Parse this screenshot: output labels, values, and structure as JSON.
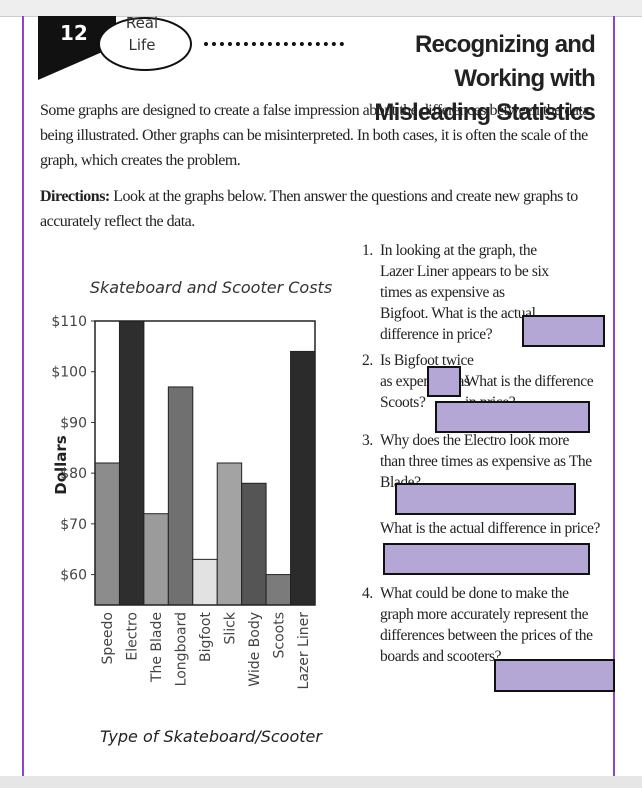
{
  "header": {
    "number": "12",
    "badge": [
      "Real",
      "Life"
    ],
    "title": "Recognizing and Working with Misleading Statistics"
  },
  "intro": "Some graphs are designed to create a false impression about the differences between the data being illustrated. Other graphs can be misinterpreted. In both cases, it is often the scale of the graph, which creates the problem.",
  "directions": {
    "label": "Directions:",
    "text": "Look at the graphs below. Then answer the questions and create new graphs to accurately reflect the data."
  },
  "chart_data": {
    "type": "bar",
    "title": "Skateboard and Scooter Costs",
    "y_label": "Dollars",
    "x_label": "Type of Skateboard/Scooter",
    "categories": [
      "Speedo",
      "Electro",
      "The Blade",
      "Longboard",
      "Bigfoot",
      "Slick",
      "Wide Body",
      "Scoots",
      "Lazer Liner"
    ],
    "values": [
      82,
      110,
      72,
      97,
      63,
      82,
      78,
      60,
      104
    ],
    "colors": [
      "#8c8c8c",
      "#2e2e2e",
      "#9b9b9b",
      "#707070",
      "#e2e2e2",
      "#a3a3a3",
      "#555555",
      "#7b7b7b",
      "#2b2b2b"
    ],
    "ylim": [
      54,
      110
    ],
    "yticks": [
      {
        "value": 60,
        "label": "$60"
      },
      {
        "value": 70,
        "label": "$70"
      },
      {
        "value": 80,
        "label": "$80"
      },
      {
        "value": 90,
        "label": "$90"
      },
      {
        "value": 100,
        "label": "$100"
      },
      {
        "value": 110,
        "label": "$110"
      }
    ]
  },
  "questions": [
    {
      "number": "1.",
      "text": "In looking at the graph, the Lazer Liner appears to be six times as expensive as Bigfoot. What is the actual difference in price?"
    },
    {
      "number": "2.",
      "text": [
        "Is Bigfoot twice as expensive as Scoots?",
        "What is the difference in price?"
      ]
    },
    {
      "number": "3.",
      "text": [
        "Why does the Electro look more than three times as expensive as The Blade?",
        "What is the actual difference in price?"
      ]
    },
    {
      "number": "4.",
      "text": "What could be done to make the graph more accurately represent the differences between the prices of the boards and scooters?"
    }
  ]
}
